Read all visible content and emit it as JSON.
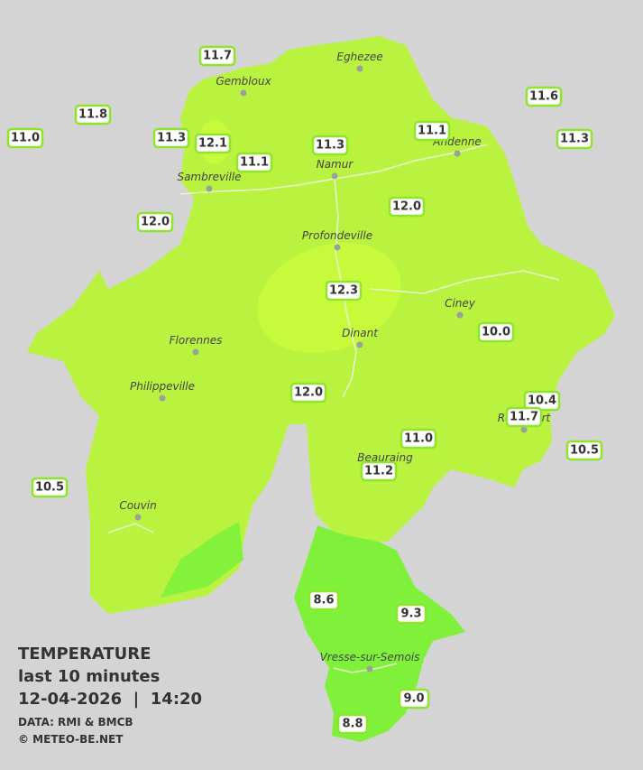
{
  "stations": [
    {
      "label": "11.7",
      "italic": false
    },
    {
      "label": "11.8",
      "italic": false
    },
    {
      "label": "11.0",
      "italic": true
    },
    {
      "label": "11.3",
      "italic": false
    },
    {
      "label": "12.1",
      "italic": false
    },
    {
      "label": "11.1",
      "italic": false
    },
    {
      "label": "11.3",
      "italic": false
    },
    {
      "label": "11.1",
      "italic": false
    },
    {
      "label": "11.6",
      "italic": false
    },
    {
      "label": "11.3",
      "italic": false
    },
    {
      "label": "12.0",
      "italic": false
    },
    {
      "label": "12.0",
      "italic": false
    },
    {
      "label": "12.3",
      "italic": true
    },
    {
      "label": "10.0",
      "italic": false
    },
    {
      "label": "12.0",
      "italic": false
    },
    {
      "label": "10.4",
      "italic": false
    },
    {
      "label": "11.7",
      "italic": true
    },
    {
      "label": "10.5",
      "italic": true
    },
    {
      "label": "11.0",
      "italic": false
    },
    {
      "label": "11.2",
      "italic": true
    },
    {
      "label": "10.5",
      "italic": false
    },
    {
      "label": "8.6",
      "italic": false
    },
    {
      "label": "9.3",
      "italic": false
    },
    {
      "label": "9.0",
      "italic": false
    },
    {
      "label": "8.8",
      "italic": false
    }
  ],
  "cities": [
    "Eghezee",
    "Gembloux",
    "Andenne",
    "Namur",
    "Sambreville",
    "Profondeville",
    "Ciney",
    "Dinant",
    "Florennes",
    "Philippeville",
    "Rochefort",
    "Beauraing",
    "Couvin",
    "Vresse-sur-Semois"
  ],
  "legend": {
    "title": "TEMPERATURE",
    "period": "last 10 minutes",
    "timestamp": "12-04-2026  |  14:20",
    "source": "DATA: RMI & BMCB",
    "credit": "© METEO-BE.NET"
  }
}
